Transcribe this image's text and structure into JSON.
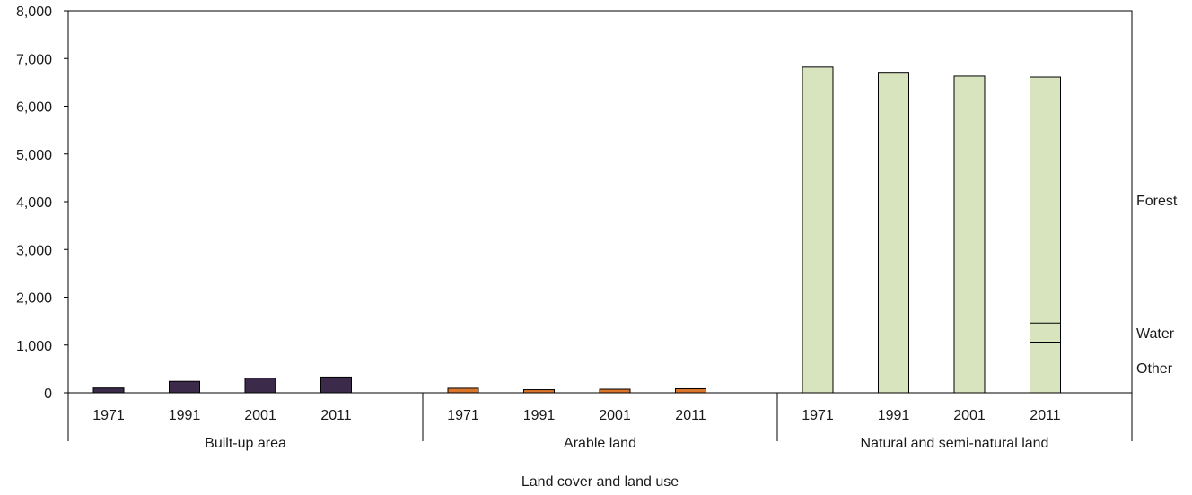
{
  "chart_data": {
    "type": "bar",
    "xlabel": "Land cover and land use",
    "ylabel": "",
    "ylim": [
      0,
      8000
    ],
    "yticks": [
      0,
      1000,
      2000,
      3000,
      4000,
      5000,
      6000,
      7000,
      8000
    ],
    "ytick_labels": [
      "0",
      "1,000",
      "2,000",
      "3,000",
      "4,000",
      "5,000",
      "6,000",
      "7,000",
      "8,000"
    ],
    "grid": false,
    "groups": [
      {
        "name": "Built-up area",
        "color": "#3b2a4a",
        "categories": [
          "1971",
          "1991",
          "2001",
          "2011"
        ],
        "values": [
          100,
          240,
          310,
          330
        ]
      },
      {
        "name": "Arable land",
        "color": "#d9742b",
        "categories": [
          "1971",
          "1991",
          "2001",
          "2011"
        ],
        "values": [
          95,
          65,
          75,
          85
        ]
      },
      {
        "name": "Natural and semi-natural land",
        "color": "#d7e4bd",
        "categories": [
          "1971",
          "1991",
          "2001",
          "2011"
        ],
        "values": [
          6820,
          6710,
          6630,
          6610
        ]
      }
    ],
    "segment_breakdown": {
      "group": "Natural and semi-natural land",
      "category": "2011",
      "boundaries": [
        1060,
        1460
      ],
      "labels": [
        "Other",
        "Water",
        "Forest"
      ]
    }
  }
}
